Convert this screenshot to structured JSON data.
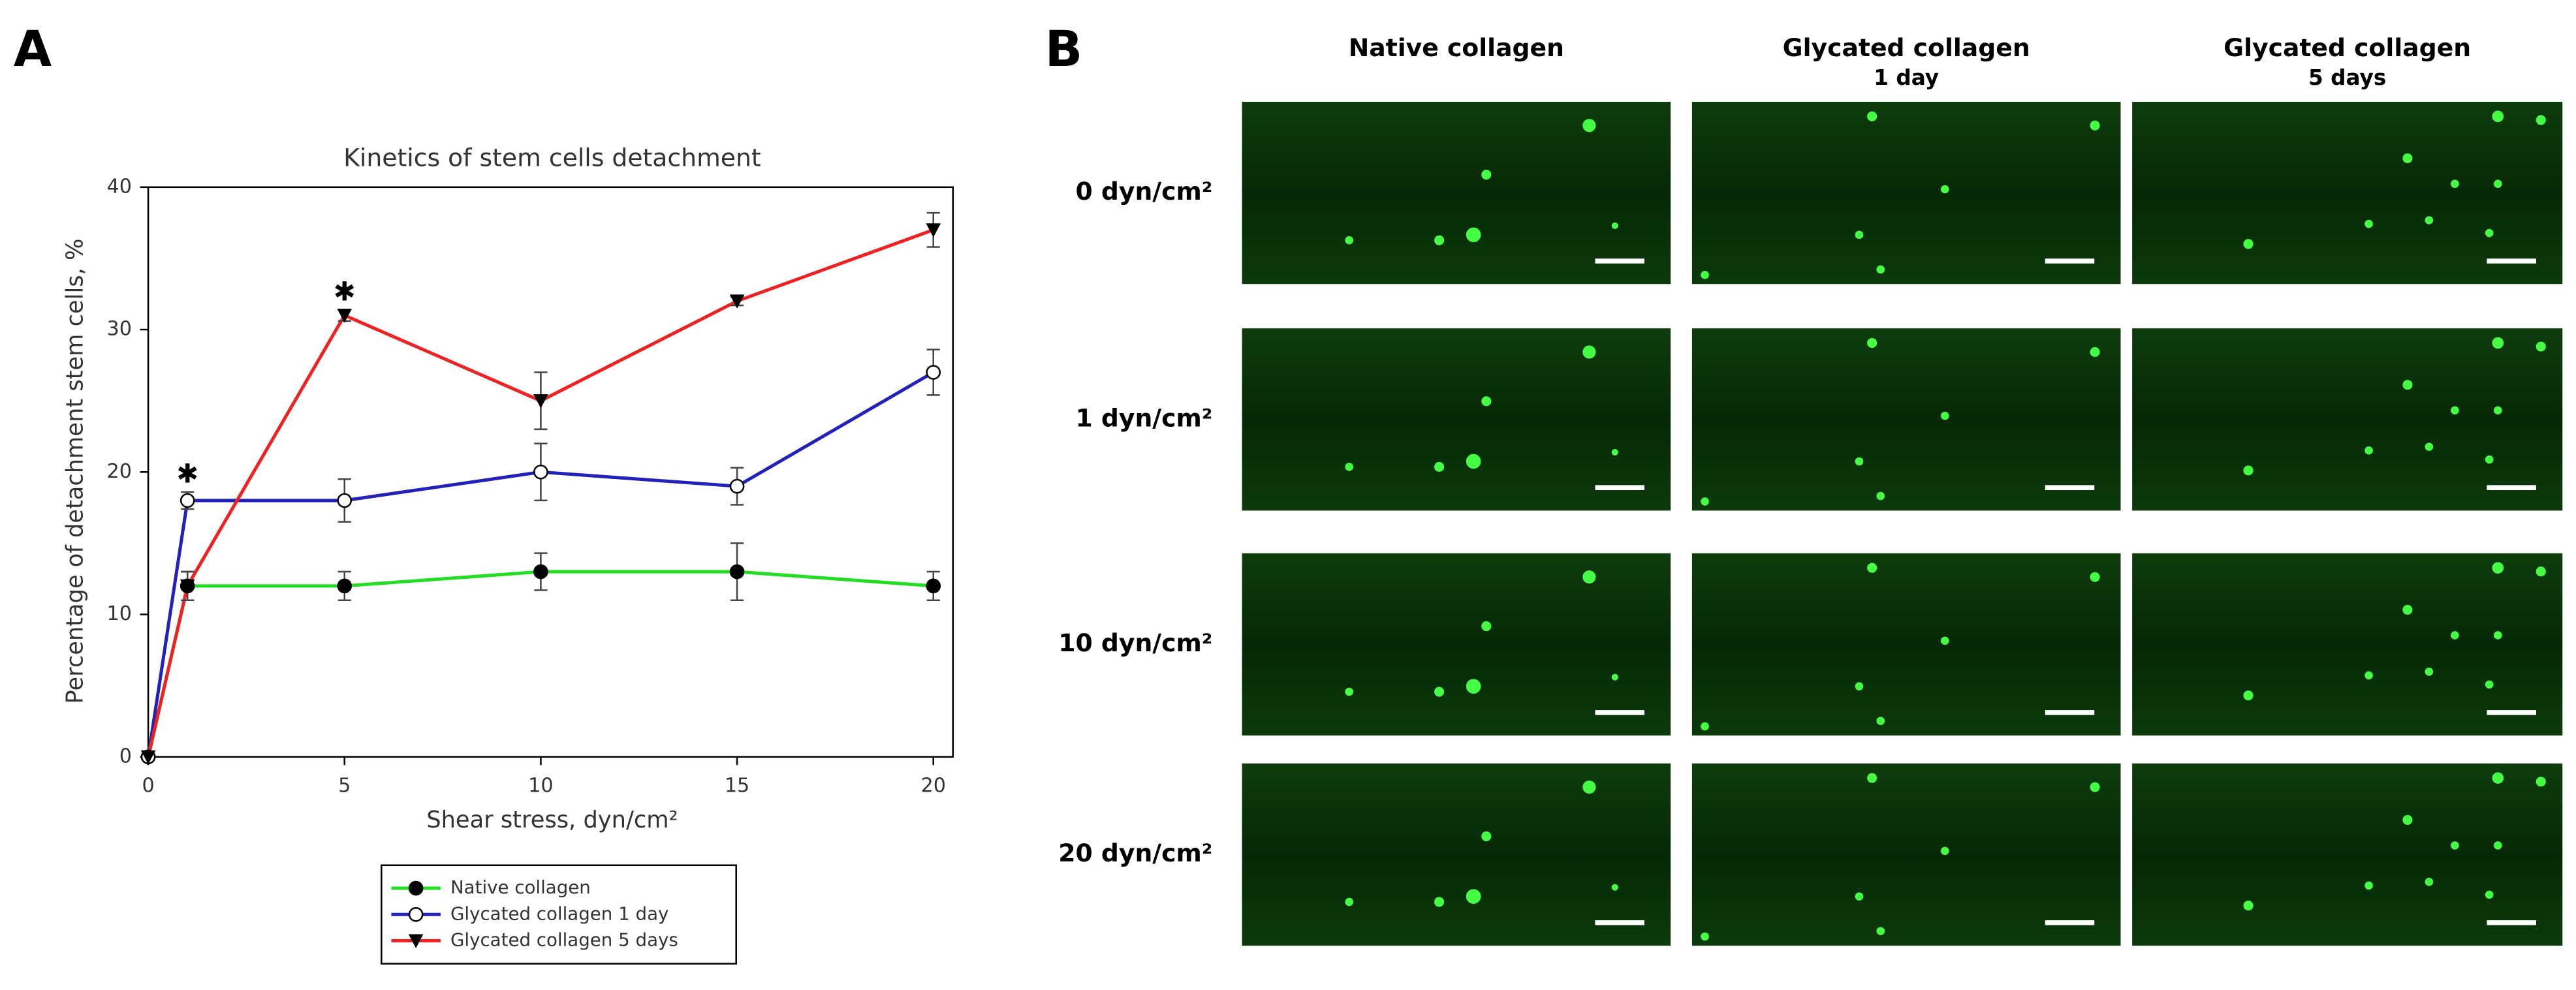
{
  "chart_data": {
    "type": "line",
    "panel_label": "A",
    "title": "Kinetics of stem cells detachment",
    "xlabel": "Shear stress, dyn/cm²",
    "ylabel": "Percentage of detachment stem cells, %",
    "x": [
      0,
      1,
      5,
      10,
      15,
      20
    ],
    "series": [
      {
        "name": "Native collagen",
        "color": "#22dd22",
        "marker": "filled-circle",
        "values": [
          0,
          12,
          12,
          13,
          13,
          12
        ],
        "errors": [
          0,
          1,
          1,
          1.3,
          2,
          1
        ]
      },
      {
        "name": "Glycated collagen 1 day",
        "color": "#2222bb",
        "marker": "open-circle",
        "values": [
          0,
          18,
          18,
          20,
          19,
          27
        ],
        "errors": [
          0,
          0.6,
          1.5,
          2,
          1.3,
          1.6
        ]
      },
      {
        "name": "Glycated collagen 5 days",
        "color": "#ee2222",
        "marker": "triangle-down",
        "values": [
          0,
          12,
          31,
          25,
          32,
          37
        ],
        "errors": [
          0,
          1,
          0.4,
          2,
          0.3,
          1.2
        ]
      }
    ],
    "annotations": [
      {
        "text": "✱",
        "x": 1
      },
      {
        "text": "✱",
        "x": 5
      }
    ],
    "xlim": [
      0,
      20.5
    ],
    "ylim": [
      0,
      40
    ],
    "xticks": [
      0,
      5,
      10,
      15,
      20
    ],
    "yticks": [
      0,
      10,
      20,
      30,
      40
    ],
    "grid": false
  },
  "panel_b": {
    "label": "B",
    "columns": [
      {
        "title": "Native collagen"
      },
      {
        "title": "Glycated collagen",
        "subtitle": "1 day"
      },
      {
        "title": "Glycated collagen",
        "subtitle": "5 days"
      }
    ],
    "rows": [
      "0 dyn/cm²",
      "1 dyn/cm²",
      "10 dyn/cm²",
      "20 dyn/cm²"
    ]
  }
}
